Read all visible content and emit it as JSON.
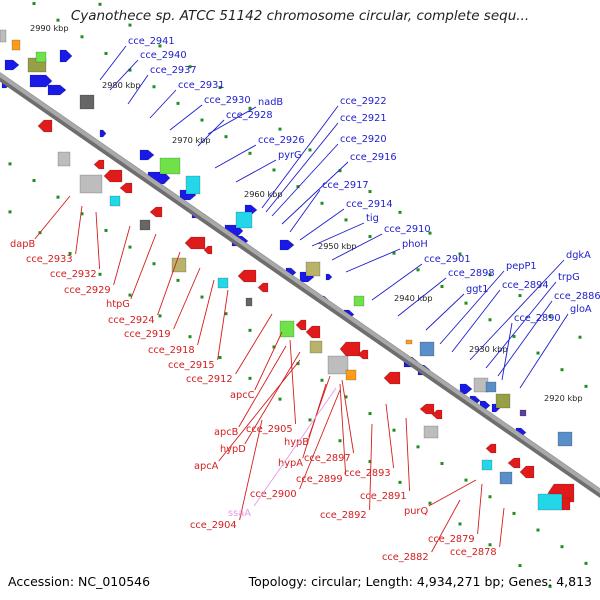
{
  "title": "Cyanothece sp. ATCC 51142 chromosome circular, complete sequ...",
  "footer": {
    "accession": "Accession: NC_010546",
    "summary": "Topology: circular; Length: 4,934,271 bp; Genes: 4,813"
  },
  "colors": {
    "backbone": "#8c8c8c",
    "plus_label": "#1d1dcc",
    "minus_label": "#d41d1d",
    "pseudo_label": "#e49ae4",
    "tick": "#1f8f1f"
  },
  "kbp_ticks": [
    "2990 kbp",
    "2980 kbp",
    "2970 kbp",
    "2960 kbp",
    "2950 kbp",
    "2940 kbp",
    "2930 kbp",
    "2920 kbp"
  ],
  "plus_genes": [
    "cce_2941",
    "cce_2940",
    "cce_2937",
    "cce_2931",
    "cce_2930",
    "nadB",
    "cce_2928",
    "cce_2926",
    "pyrG",
    "cce_2922",
    "cce_2921",
    "cce_2920",
    "cce_2916",
    "cce_2917",
    "cce_2914",
    "tig",
    "cce_2910",
    "phoH",
    "cce_2901",
    "cce_2898",
    "ggt1",
    "pepP1",
    "cce_2894",
    "dgkA",
    "trpG",
    "cce_2886",
    "cce_2890",
    "gloA"
  ],
  "minus_genes": [
    "dapB",
    "cce_2933",
    "cce_2932",
    "cce_2929",
    "htpG",
    "cce_2924",
    "cce_2919",
    "cce_2918",
    "cce_2915",
    "cce_2912",
    "apcC",
    "cce_2905",
    "apcB",
    "hypD",
    "apcA",
    "hypB",
    "cce_2897",
    "hypA",
    "cce_2899",
    "cce_2893",
    "cce_2900",
    "cce_2891",
    "cce_2892",
    "cce_2904",
    "purQ",
    "cce_2879",
    "cce_2882",
    "cce_2878"
  ],
  "pseudo_genes": [
    "ssaA"
  ]
}
